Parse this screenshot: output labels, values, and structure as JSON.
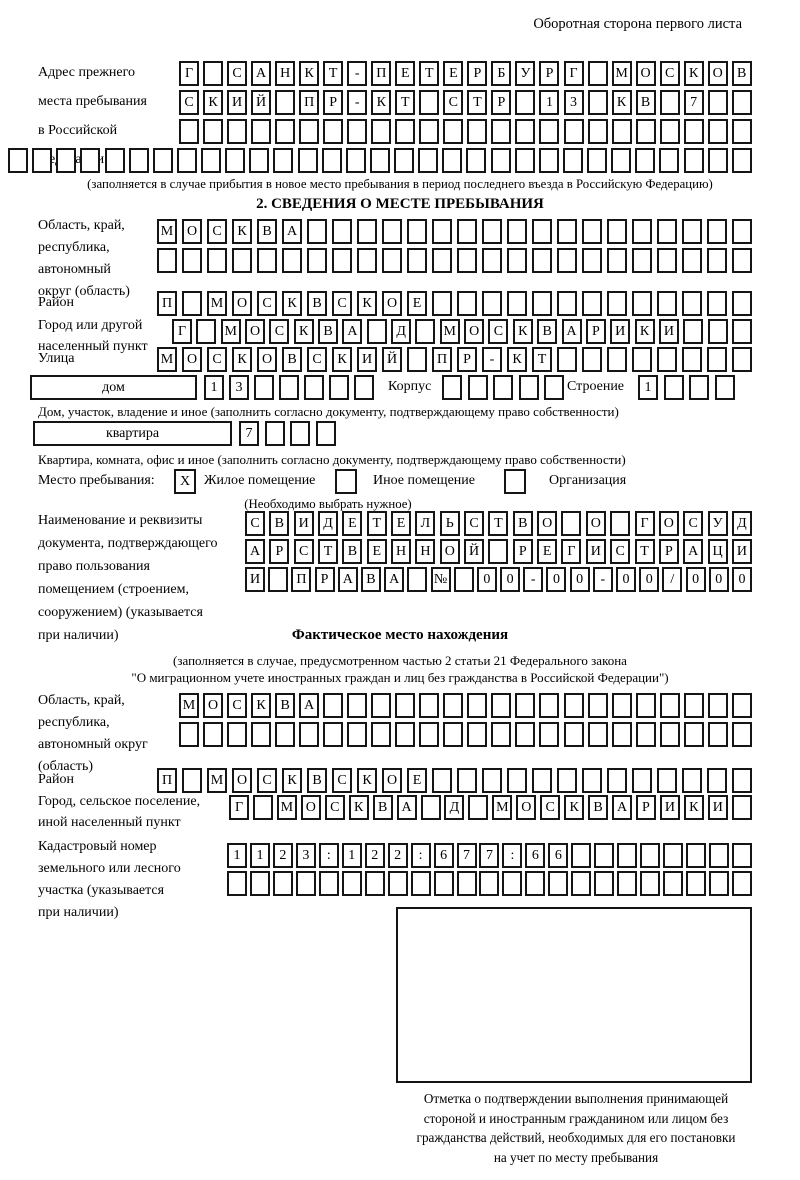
{
  "header": {
    "back_side_note": "Оборотная сторона первого листа"
  },
  "prev_address": {
    "label": [
      "Адрес прежнего",
      "места пребывания",
      "в Российской",
      "Федерации"
    ],
    "row1": "Г САНКТ-ПЕТЕРБУРГ МОСКОВ",
    "row2": "СКИЙ ПР-КТ СТР 13 КВ 7  ",
    "row3": "                        ",
    "row4": "                               ",
    "note": "(заполняется в случае прибытия в новое место пребывания в период последнего въезда в Российскую Федерацию)"
  },
  "section2": {
    "title": "2. СВЕДЕНИЯ О МЕСТЕ ПРЕБЫВАНИЯ",
    "oblast": {
      "label": [
        "Область, край,",
        "республика,",
        "автономный",
        "округ (область)"
      ],
      "row1": "МОСКВА                  ",
      "row2": "                        "
    },
    "rayon": {
      "label": "Район",
      "row": "П МОСКВСКОЕ             "
    },
    "gorod": {
      "label": [
        "Город или другой",
        "населенный пункт"
      ],
      "row": "Г МОСКВА Д МОСКВАРИКИ   "
    },
    "ulitsa": {
      "label": "Улица",
      "row": "МОСКОВСКИЙ ПР-КТ        "
    },
    "dom": {
      "box_label": "дом",
      "cells": "13     ",
      "korpus_label": "Корпус",
      "korpus_cells": "     ",
      "stroenie_label": "Строение",
      "stroenie_cells": "1   "
    },
    "dom_note": "Дом, участок, владение и иное (заполнить согласно документу, подтверждающему право собственности)",
    "kvartira": {
      "box_label": "квартира",
      "cells": "7   "
    },
    "kvartira_note": "Квартира, комната, офис и иное (заполнить согласно документу, подтверждающему право собственности)",
    "mesto": {
      "label": "Место пребывания:",
      "options": [
        {
          "label": "Жилое помещение",
          "mark": "X"
        },
        {
          "label": "Иное помещение",
          "mark": ""
        },
        {
          "label": "Организация",
          "mark": ""
        }
      ],
      "note": "(Необходимо выбрать нужное)"
    },
    "document": {
      "label": [
        "Наименование и реквизиты",
        "документа, подтверждающего",
        "право пользования",
        "помещением (строением,",
        "сооружением) (указывается",
        "при наличии)"
      ],
      "row1": "СВИДЕТЕЛЬСТВО О ГОСУД",
      "row2": "АРСТВЕННОЙ РЕГИСТРАЦИ",
      "row3": "И ПРАВА № 00-00-00/000"
    }
  },
  "fact": {
    "title": "Фактическое место нахождения",
    "note1": "(заполняется в случае, предусмотренном частью 2 статьи 21 Федерального закона",
    "note2": "\"О миграционном учете иностранных граждан и лиц без гражданства в Российской Федерации\")",
    "oblast": {
      "label": [
        "Область, край,",
        "республика,",
        "автономный округ",
        "(область)"
      ],
      "row1": "МОСКВА                  ",
      "row2": "                        "
    },
    "rayon": {
      "label": "Район",
      "row": "П МОСКВСКОЕ             "
    },
    "gorod": {
      "label": [
        "Город, сельское поселение,",
        "иной населенный пункт"
      ],
      "row": "Г МОСКВА Д МОСКВАРИКИ "
    },
    "kadastr": {
      "label": [
        "Кадастровый номер",
        "земельного или лесного",
        "участка (указывается",
        "при наличии)"
      ],
      "row1": "1123:122:677:66        ",
      "row2": "                       "
    },
    "stamp_caption": [
      "Отметка о подтверждении выполнения принимающей",
      "стороной и иностранным гражданином или лицом без",
      "гражданства действий, необходимых для его постановки",
      "на учет по месту пребывания"
    ]
  }
}
